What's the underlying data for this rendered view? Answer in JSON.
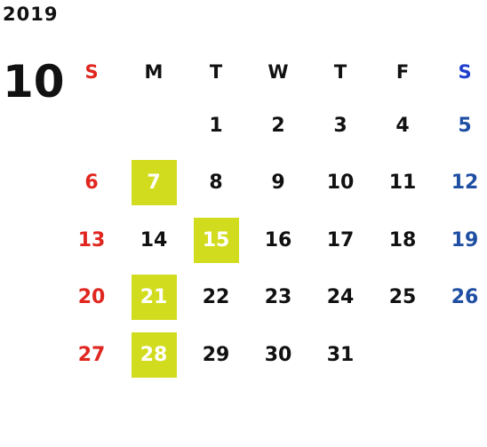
{
  "calendar": {
    "year": "2019",
    "month": "10",
    "colors": {
      "sunday": "#e0261f",
      "saturday": "#1f4fa3",
      "highlight": "#d2dc1e",
      "text": "#111111"
    },
    "weekdays": [
      "S",
      "M",
      "T",
      "W",
      "T",
      "F",
      "S"
    ],
    "weeks": [
      [
        "",
        "",
        "1",
        "2",
        "3",
        "4",
        "5"
      ],
      [
        "6",
        "7",
        "8",
        "9",
        "10",
        "11",
        "12"
      ],
      [
        "13",
        "14",
        "15",
        "16",
        "17",
        "18",
        "19"
      ],
      [
        "20",
        "21",
        "22",
        "23",
        "24",
        "25",
        "26"
      ],
      [
        "27",
        "28",
        "29",
        "30",
        "31",
        "",
        ""
      ]
    ],
    "highlighted_days": [
      "7",
      "15",
      "21",
      "28"
    ]
  }
}
